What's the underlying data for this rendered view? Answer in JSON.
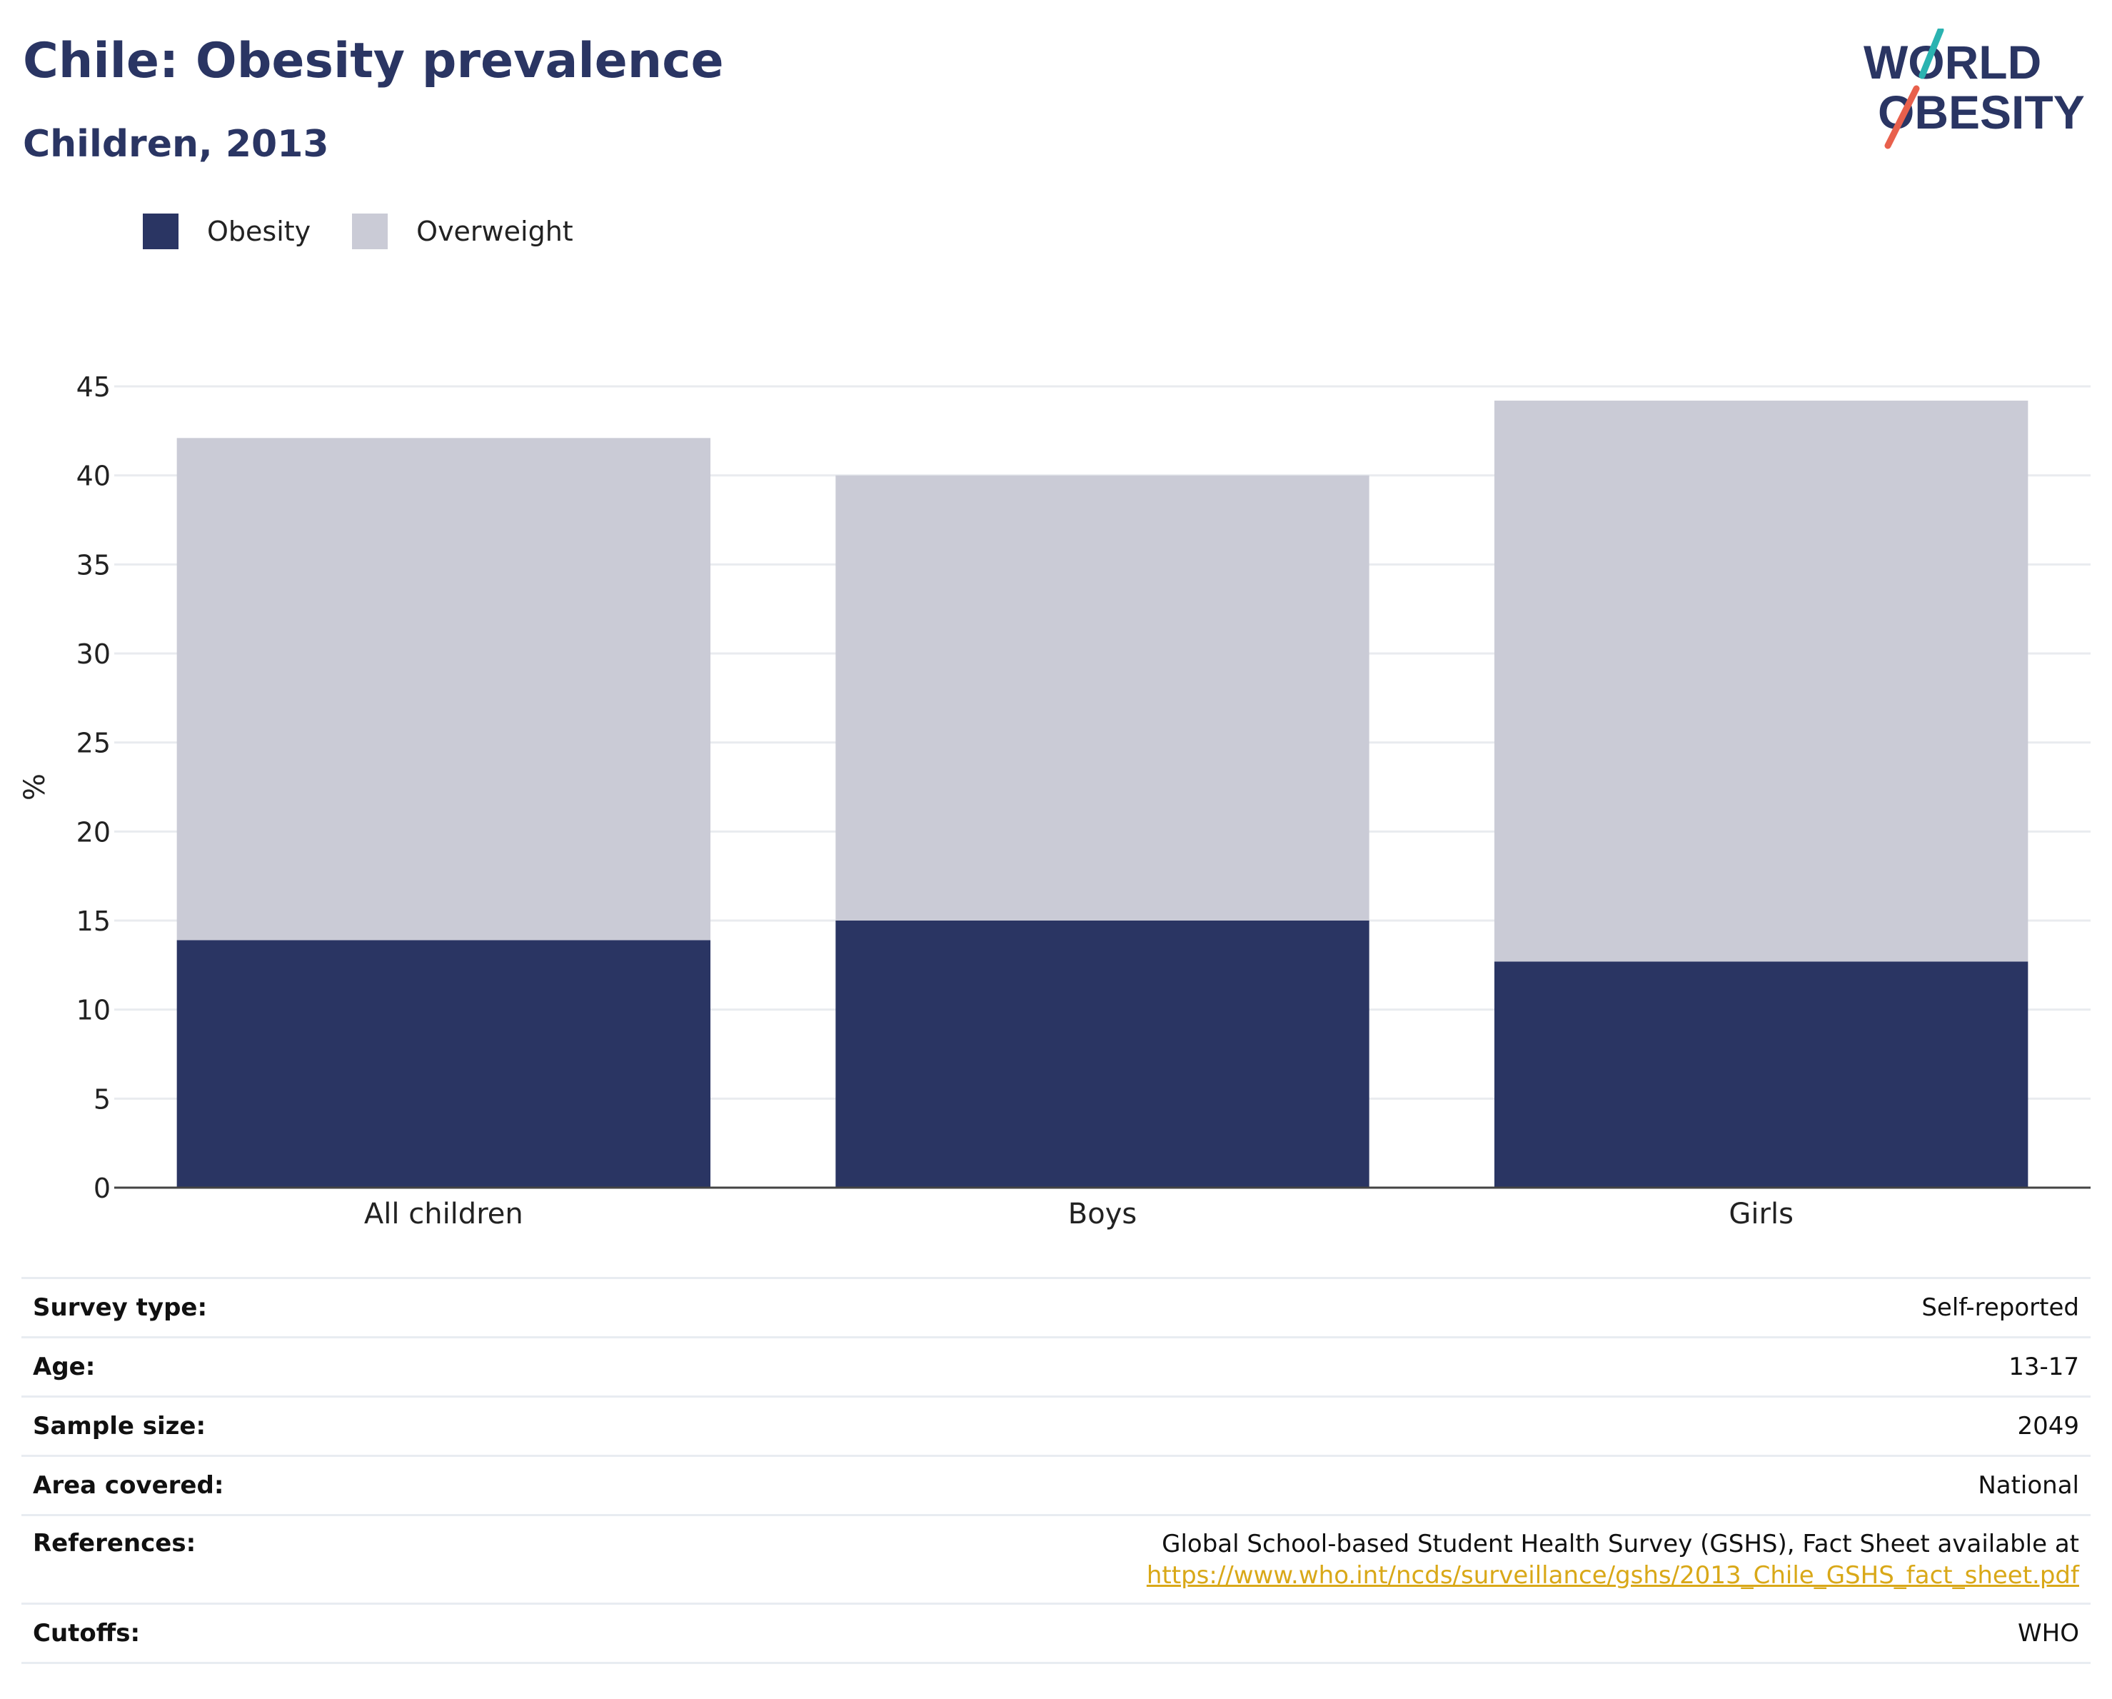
{
  "header": {
    "title": "Chile: Obesity prevalence",
    "subtitle": "Children, 2013"
  },
  "logo": {
    "line1": "WORLD",
    "line2": "OBESITY"
  },
  "colors": {
    "obesity": "#2a3563",
    "overweight": "#cacbd6",
    "accent_link": "#d9a818",
    "logo_teal": "#2bb3b1",
    "logo_coral": "#e8604c"
  },
  "legend": [
    {
      "label": "Obesity",
      "color": "#2a3563"
    },
    {
      "label": "Overweight",
      "color": "#cacbd6"
    }
  ],
  "chart_data": {
    "type": "bar",
    "stacked": true,
    "categories": [
      "All children",
      "Boys",
      "Girls"
    ],
    "series": [
      {
        "name": "Obesity",
        "values": [
          13.9,
          15.0,
          12.7
        ]
      },
      {
        "name": "Overweight",
        "values": [
          28.2,
          25.0,
          31.5
        ]
      }
    ],
    "totals": [
      42.1,
      40.0,
      44.2
    ],
    "ylabel": "%",
    "ylim": [
      0,
      45
    ],
    "yticks": [
      0,
      5,
      10,
      15,
      20,
      25,
      30,
      35,
      40,
      45
    ],
    "grid": true,
    "legend_position": "top-left"
  },
  "info": [
    {
      "label": "Survey type:",
      "value": "Self-reported"
    },
    {
      "label": "Age:",
      "value": "13-17"
    },
    {
      "label": "Sample size:",
      "value": "2049"
    },
    {
      "label": "Area covered:",
      "value": "National"
    },
    {
      "label": "References:",
      "value": "Global School-based Student Health Survey (GSHS), Fact Sheet available at",
      "link": "https://www.who.int/ncds/surveillance/gshs/2013_Chile_GSHS_fact_sheet.pdf"
    },
    {
      "label": "Cutoffs:",
      "value": "WHO"
    }
  ]
}
